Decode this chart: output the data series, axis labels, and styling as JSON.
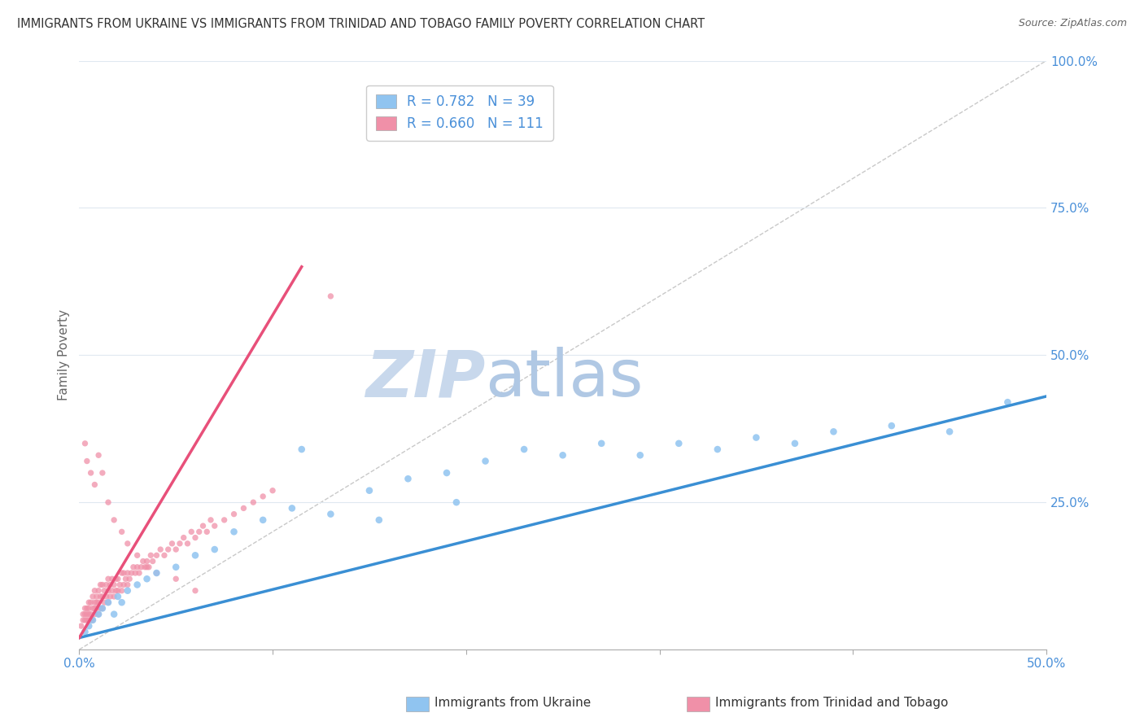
{
  "title": "IMMIGRANTS FROM UKRAINE VS IMMIGRANTS FROM TRINIDAD AND TOBAGO FAMILY POVERTY CORRELATION CHART",
  "source": "Source: ZipAtlas.com",
  "ylabel": "Family Poverty",
  "xlim": [
    0.0,
    0.5
  ],
  "ylim": [
    0.0,
    1.0
  ],
  "ukraine_color": "#90c4f0",
  "tt_color": "#f090a8",
  "ukraine_line_color": "#3a8fd4",
  "tt_line_color": "#e8507a",
  "ref_line_color": "#bbbbbb",
  "ukraine_R": 0.782,
  "ukraine_N": 39,
  "tt_R": 0.66,
  "tt_N": 111,
  "ukraine_scatter_x": [
    0.003,
    0.005,
    0.007,
    0.01,
    0.012,
    0.015,
    0.018,
    0.02,
    0.022,
    0.025,
    0.03,
    0.035,
    0.04,
    0.05,
    0.06,
    0.07,
    0.08,
    0.095,
    0.11,
    0.13,
    0.15,
    0.17,
    0.19,
    0.21,
    0.23,
    0.25,
    0.27,
    0.29,
    0.31,
    0.33,
    0.35,
    0.37,
    0.39,
    0.42,
    0.45,
    0.115,
    0.155,
    0.195,
    0.48
  ],
  "ukraine_scatter_y": [
    0.03,
    0.04,
    0.05,
    0.06,
    0.07,
    0.08,
    0.06,
    0.09,
    0.08,
    0.1,
    0.11,
    0.12,
    0.13,
    0.14,
    0.16,
    0.17,
    0.2,
    0.22,
    0.24,
    0.23,
    0.27,
    0.29,
    0.3,
    0.32,
    0.34,
    0.33,
    0.35,
    0.33,
    0.35,
    0.34,
    0.36,
    0.35,
    0.37,
    0.38,
    0.37,
    0.34,
    0.22,
    0.25,
    0.42
  ],
  "tt_scatter_x": [
    0.001,
    0.002,
    0.002,
    0.003,
    0.003,
    0.003,
    0.004,
    0.004,
    0.004,
    0.005,
    0.005,
    0.005,
    0.005,
    0.006,
    0.006,
    0.006,
    0.007,
    0.007,
    0.007,
    0.008,
    0.008,
    0.008,
    0.008,
    0.009,
    0.009,
    0.009,
    0.01,
    0.01,
    0.01,
    0.011,
    0.011,
    0.011,
    0.012,
    0.012,
    0.012,
    0.013,
    0.013,
    0.014,
    0.014,
    0.015,
    0.015,
    0.015,
    0.016,
    0.016,
    0.017,
    0.017,
    0.018,
    0.018,
    0.019,
    0.019,
    0.02,
    0.02,
    0.021,
    0.022,
    0.022,
    0.023,
    0.023,
    0.024,
    0.025,
    0.025,
    0.026,
    0.027,
    0.028,
    0.029,
    0.03,
    0.031,
    0.032,
    0.033,
    0.034,
    0.035,
    0.036,
    0.037,
    0.038,
    0.04,
    0.042,
    0.044,
    0.046,
    0.048,
    0.05,
    0.052,
    0.054,
    0.056,
    0.058,
    0.06,
    0.062,
    0.064,
    0.066,
    0.068,
    0.07,
    0.075,
    0.08,
    0.085,
    0.09,
    0.095,
    0.1,
    0.003,
    0.004,
    0.006,
    0.008,
    0.01,
    0.012,
    0.015,
    0.018,
    0.022,
    0.025,
    0.03,
    0.035,
    0.04,
    0.05,
    0.06,
    0.13
  ],
  "tt_scatter_y": [
    0.04,
    0.05,
    0.06,
    0.05,
    0.06,
    0.07,
    0.05,
    0.06,
    0.07,
    0.05,
    0.06,
    0.07,
    0.08,
    0.05,
    0.06,
    0.08,
    0.05,
    0.07,
    0.09,
    0.06,
    0.07,
    0.08,
    0.1,
    0.07,
    0.08,
    0.09,
    0.06,
    0.08,
    0.1,
    0.07,
    0.09,
    0.11,
    0.07,
    0.09,
    0.11,
    0.08,
    0.1,
    0.09,
    0.11,
    0.08,
    0.1,
    0.12,
    0.09,
    0.11,
    0.1,
    0.12,
    0.09,
    0.11,
    0.1,
    0.12,
    0.1,
    0.12,
    0.11,
    0.1,
    0.13,
    0.11,
    0.13,
    0.12,
    0.11,
    0.13,
    0.12,
    0.13,
    0.14,
    0.13,
    0.14,
    0.13,
    0.14,
    0.15,
    0.14,
    0.15,
    0.14,
    0.16,
    0.15,
    0.16,
    0.17,
    0.16,
    0.17,
    0.18,
    0.17,
    0.18,
    0.19,
    0.18,
    0.2,
    0.19,
    0.2,
    0.21,
    0.2,
    0.22,
    0.21,
    0.22,
    0.23,
    0.24,
    0.25,
    0.26,
    0.27,
    0.35,
    0.32,
    0.3,
    0.28,
    0.33,
    0.3,
    0.25,
    0.22,
    0.2,
    0.18,
    0.16,
    0.14,
    0.13,
    0.12,
    0.1,
    0.6
  ],
  "watermark_zip_color": "#c8d8ec",
  "watermark_atlas_color": "#b8d0e8",
  "text_blue_color": "#4a90d9",
  "ytick_color": "#4a90d9",
  "background_color": "#ffffff",
  "grid_color": "#e0e8f0",
  "legend_label_ukraine": "R = 0.782   N = 39",
  "legend_label_tt": "R = 0.660   N = 111",
  "bottom_label_ukraine": "Immigrants from Ukraine",
  "bottom_label_tt": "Immigrants from Trinidad and Tobago"
}
